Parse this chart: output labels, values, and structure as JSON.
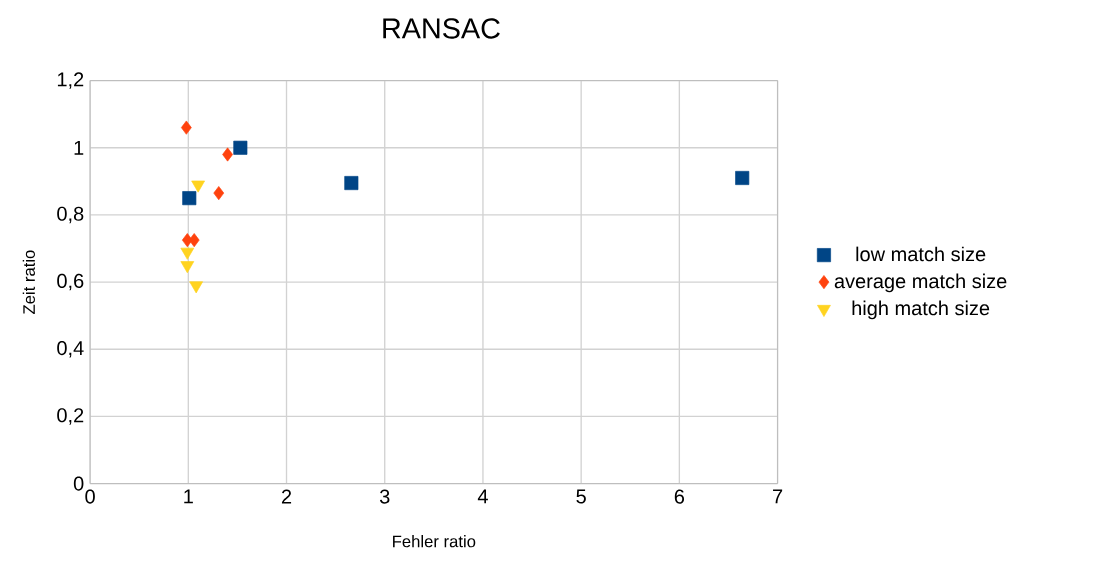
{
  "chart_data": {
    "type": "scatter",
    "title": "RANSAC",
    "xlabel": "Fehler ratio",
    "ylabel": "Zeit ratio",
    "xlim": [
      0,
      7
    ],
    "xticks": [
      0,
      1,
      2,
      3,
      4,
      5,
      6,
      7
    ],
    "ylim": [
      0,
      1.2
    ],
    "yticks": [
      {
        "value": 0,
        "label": "0"
      },
      {
        "value": 0.2,
        "label": "0,2"
      },
      {
        "value": 0.4,
        "label": "0,4"
      },
      {
        "value": 0.6,
        "label": "0,6"
      },
      {
        "value": 0.8,
        "label": "0,8"
      },
      {
        "value": 1,
        "label": "1"
      },
      {
        "value": 1.2,
        "label": "1,2"
      }
    ],
    "grid": true,
    "legend": "right",
    "series": [
      {
        "name": "low match size",
        "color": "#004586",
        "marker": "square",
        "x": [
          1.01,
          1.53,
          2.66,
          6.64
        ],
        "values": [
          0.85,
          1.0,
          0.895,
          0.91
        ]
      },
      {
        "name": "average match size",
        "color": "#ff420e",
        "marker": "diamond",
        "x": [
          0.98,
          1.4,
          1.31,
          0.99,
          1.06
        ],
        "values": [
          1.06,
          0.98,
          0.865,
          0.725,
          0.725
        ]
      },
      {
        "name": "high match size",
        "color": "#ffd320",
        "marker": "triangle",
        "x": [
          1.1,
          0.99,
          0.99,
          1.08
        ],
        "values": [
          0.89,
          0.69,
          0.65,
          0.59
        ]
      }
    ]
  }
}
